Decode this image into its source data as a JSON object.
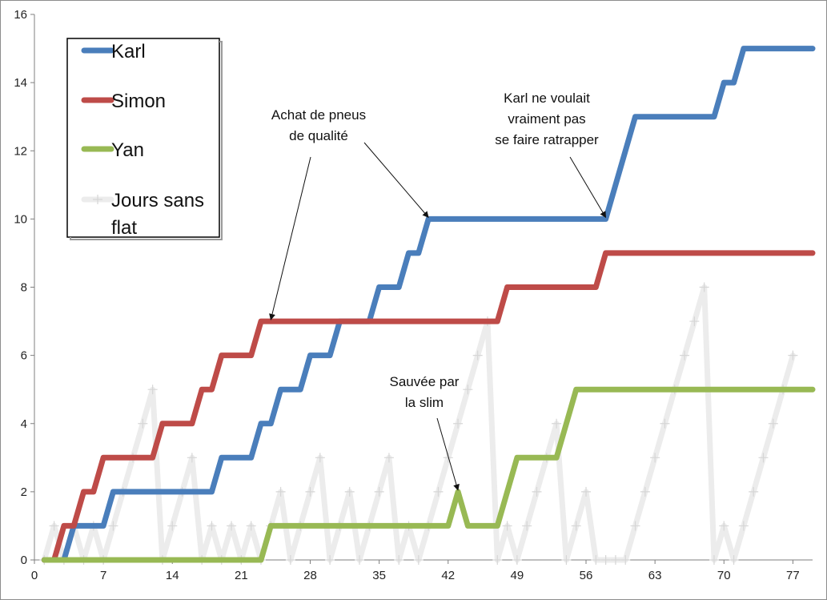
{
  "chart_data": {
    "type": "line",
    "title": "",
    "xlabel": "",
    "ylabel": "",
    "xlim": [
      0,
      79
    ],
    "ylim": [
      0,
      16
    ],
    "x_ticks": [
      0,
      7,
      14,
      21,
      28,
      35,
      42,
      49,
      56,
      63,
      70,
      77
    ],
    "y_ticks": [
      0,
      2,
      4,
      6,
      8,
      10,
      12,
      14,
      16
    ],
    "grid": false,
    "legend": {
      "placement": "top-left",
      "boxed": true
    },
    "series": [
      {
        "name": "Karl",
        "color": "#4a7ebb",
        "points": [
          [
            1,
            0
          ],
          [
            2,
            0
          ],
          [
            3,
            0
          ],
          [
            4,
            1
          ],
          [
            5,
            1
          ],
          [
            6,
            1
          ],
          [
            7,
            1
          ],
          [
            8,
            2
          ],
          [
            9,
            2
          ],
          [
            10,
            2
          ],
          [
            11,
            2
          ],
          [
            12,
            2
          ],
          [
            13,
            2
          ],
          [
            14,
            2
          ],
          [
            15,
            2
          ],
          [
            16,
            2
          ],
          [
            17,
            2
          ],
          [
            18,
            2
          ],
          [
            19,
            3
          ],
          [
            20,
            3
          ],
          [
            21,
            3
          ],
          [
            22,
            3
          ],
          [
            23,
            4
          ],
          [
            24,
            4
          ],
          [
            25,
            5
          ],
          [
            26,
            5
          ],
          [
            27,
            5
          ],
          [
            28,
            6
          ],
          [
            29,
            6
          ],
          [
            30,
            6
          ],
          [
            31,
            7
          ],
          [
            32,
            7
          ],
          [
            33,
            7
          ],
          [
            34,
            7
          ],
          [
            35,
            8
          ],
          [
            36,
            8
          ],
          [
            37,
            8
          ],
          [
            38,
            9
          ],
          [
            39,
            9
          ],
          [
            40,
            10
          ],
          [
            41,
            10
          ],
          [
            42,
            10
          ],
          [
            43,
            10
          ],
          [
            44,
            10
          ],
          [
            45,
            10
          ],
          [
            46,
            10
          ],
          [
            47,
            10
          ],
          [
            48,
            10
          ],
          [
            49,
            10
          ],
          [
            50,
            10
          ],
          [
            51,
            10
          ],
          [
            52,
            10
          ],
          [
            53,
            10
          ],
          [
            54,
            10
          ],
          [
            55,
            10
          ],
          [
            56,
            10
          ],
          [
            57,
            10
          ],
          [
            58,
            10
          ],
          [
            59,
            11
          ],
          [
            60,
            12
          ],
          [
            61,
            13
          ],
          [
            62,
            13
          ],
          [
            63,
            13
          ],
          [
            64,
            13
          ],
          [
            65,
            13
          ],
          [
            66,
            13
          ],
          [
            67,
            13
          ],
          [
            68,
            13
          ],
          [
            69,
            13
          ],
          [
            70,
            14
          ],
          [
            71,
            14
          ],
          [
            72,
            15
          ],
          [
            73,
            15
          ],
          [
            74,
            15
          ],
          [
            75,
            15
          ],
          [
            76,
            15
          ],
          [
            77,
            15
          ],
          [
            78,
            15
          ],
          [
            79,
            15
          ]
        ]
      },
      {
        "name": "Simon",
        "color": "#be4b48",
        "points": [
          [
            1,
            0
          ],
          [
            2,
            0
          ],
          [
            3,
            1
          ],
          [
            4,
            1
          ],
          [
            5,
            2
          ],
          [
            6,
            2
          ],
          [
            7,
            3
          ],
          [
            8,
            3
          ],
          [
            9,
            3
          ],
          [
            10,
            3
          ],
          [
            11,
            3
          ],
          [
            12,
            3
          ],
          [
            13,
            4
          ],
          [
            14,
            4
          ],
          [
            15,
            4
          ],
          [
            16,
            4
          ],
          [
            17,
            5
          ],
          [
            18,
            5
          ],
          [
            19,
            6
          ],
          [
            20,
            6
          ],
          [
            21,
            6
          ],
          [
            22,
            6
          ],
          [
            23,
            7
          ],
          [
            24,
            7
          ],
          [
            25,
            7
          ],
          [
            26,
            7
          ],
          [
            27,
            7
          ],
          [
            28,
            7
          ],
          [
            29,
            7
          ],
          [
            30,
            7
          ],
          [
            31,
            7
          ],
          [
            32,
            7
          ],
          [
            33,
            7
          ],
          [
            34,
            7
          ],
          [
            35,
            7
          ],
          [
            36,
            7
          ],
          [
            37,
            7
          ],
          [
            38,
            7
          ],
          [
            39,
            7
          ],
          [
            40,
            7
          ],
          [
            41,
            7
          ],
          [
            42,
            7
          ],
          [
            43,
            7
          ],
          [
            44,
            7
          ],
          [
            45,
            7
          ],
          [
            46,
            7
          ],
          [
            47,
            7
          ],
          [
            48,
            8
          ],
          [
            49,
            8
          ],
          [
            50,
            8
          ],
          [
            51,
            8
          ],
          [
            52,
            8
          ],
          [
            53,
            8
          ],
          [
            54,
            8
          ],
          [
            55,
            8
          ],
          [
            56,
            8
          ],
          [
            57,
            8
          ],
          [
            58,
            9
          ],
          [
            59,
            9
          ],
          [
            60,
            9
          ],
          [
            61,
            9
          ],
          [
            62,
            9
          ],
          [
            63,
            9
          ],
          [
            64,
            9
          ],
          [
            65,
            9
          ],
          [
            66,
            9
          ],
          [
            67,
            9
          ],
          [
            68,
            9
          ],
          [
            69,
            9
          ],
          [
            70,
            9
          ],
          [
            71,
            9
          ],
          [
            72,
            9
          ],
          [
            73,
            9
          ],
          [
            74,
            9
          ],
          [
            75,
            9
          ],
          [
            76,
            9
          ],
          [
            77,
            9
          ],
          [
            78,
            9
          ],
          [
            79,
            9
          ]
        ]
      },
      {
        "name": "Yan",
        "color": "#98b954",
        "points": [
          [
            1,
            0
          ],
          [
            2,
            0
          ],
          [
            3,
            0
          ],
          [
            4,
            0
          ],
          [
            5,
            0
          ],
          [
            6,
            0
          ],
          [
            7,
            0
          ],
          [
            8,
            0
          ],
          [
            9,
            0
          ],
          [
            10,
            0
          ],
          [
            11,
            0
          ],
          [
            12,
            0
          ],
          [
            13,
            0
          ],
          [
            14,
            0
          ],
          [
            15,
            0
          ],
          [
            16,
            0
          ],
          [
            17,
            0
          ],
          [
            18,
            0
          ],
          [
            19,
            0
          ],
          [
            20,
            0
          ],
          [
            21,
            0
          ],
          [
            22,
            0
          ],
          [
            23,
            0
          ],
          [
            24,
            1
          ],
          [
            25,
            1
          ],
          [
            26,
            1
          ],
          [
            27,
            1
          ],
          [
            28,
            1
          ],
          [
            29,
            1
          ],
          [
            30,
            1
          ],
          [
            31,
            1
          ],
          [
            32,
            1
          ],
          [
            33,
            1
          ],
          [
            34,
            1
          ],
          [
            35,
            1
          ],
          [
            36,
            1
          ],
          [
            37,
            1
          ],
          [
            38,
            1
          ],
          [
            39,
            1
          ],
          [
            40,
            1
          ],
          [
            41,
            1
          ],
          [
            42,
            1
          ],
          [
            43,
            2
          ],
          [
            44,
            1
          ],
          [
            45,
            1
          ],
          [
            46,
            1
          ],
          [
            47,
            1
          ],
          [
            48,
            2
          ],
          [
            49,
            3
          ],
          [
            50,
            3
          ],
          [
            51,
            3
          ],
          [
            52,
            3
          ],
          [
            53,
            3
          ],
          [
            54,
            4
          ],
          [
            55,
            5
          ],
          [
            56,
            5
          ],
          [
            57,
            5
          ],
          [
            58,
            5
          ],
          [
            59,
            5
          ],
          [
            60,
            5
          ],
          [
            61,
            5
          ],
          [
            62,
            5
          ],
          [
            63,
            5
          ],
          [
            64,
            5
          ],
          [
            65,
            5
          ],
          [
            66,
            5
          ],
          [
            67,
            5
          ],
          [
            68,
            5
          ],
          [
            69,
            5
          ],
          [
            70,
            5
          ],
          [
            71,
            5
          ],
          [
            72,
            5
          ],
          [
            73,
            5
          ],
          [
            74,
            5
          ],
          [
            75,
            5
          ],
          [
            76,
            5
          ],
          [
            77,
            5
          ],
          [
            78,
            5
          ],
          [
            79,
            5
          ]
        ]
      },
      {
        "name": "Jours sans flat",
        "color": "#ececec",
        "marker": "plus",
        "points": [
          [
            1,
            0
          ],
          [
            2,
            1
          ],
          [
            3,
            0
          ],
          [
            4,
            1
          ],
          [
            5,
            0
          ],
          [
            6,
            1
          ],
          [
            7,
            0
          ],
          [
            8,
            1
          ],
          [
            9,
            2
          ],
          [
            10,
            3
          ],
          [
            11,
            4
          ],
          [
            12,
            5
          ],
          [
            13,
            0
          ],
          [
            14,
            1
          ],
          [
            15,
            2
          ],
          [
            16,
            3
          ],
          [
            17,
            0
          ],
          [
            18,
            1
          ],
          [
            19,
            0
          ],
          [
            20,
            1
          ],
          [
            21,
            0
          ],
          [
            22,
            1
          ],
          [
            23,
            0
          ],
          [
            24,
            1
          ],
          [
            25,
            2
          ],
          [
            26,
            0
          ],
          [
            27,
            1
          ],
          [
            28,
            2
          ],
          [
            29,
            3
          ],
          [
            30,
            0
          ],
          [
            31,
            1
          ],
          [
            32,
            2
          ],
          [
            33,
            0
          ],
          [
            34,
            1
          ],
          [
            35,
            2
          ],
          [
            36,
            3
          ],
          [
            37,
            0
          ],
          [
            38,
            1
          ],
          [
            39,
            0
          ],
          [
            40,
            1
          ],
          [
            41,
            2
          ],
          [
            42,
            3
          ],
          [
            43,
            4
          ],
          [
            44,
            5
          ],
          [
            45,
            6
          ],
          [
            46,
            7
          ],
          [
            47,
            0
          ],
          [
            48,
            1
          ],
          [
            49,
            0
          ],
          [
            50,
            1
          ],
          [
            51,
            2
          ],
          [
            52,
            3
          ],
          [
            53,
            4
          ],
          [
            54,
            0
          ],
          [
            55,
            1
          ],
          [
            56,
            2
          ],
          [
            57,
            0
          ],
          [
            58,
            0
          ],
          [
            59,
            0
          ],
          [
            60,
            0
          ],
          [
            61,
            1
          ],
          [
            62,
            2
          ],
          [
            63,
            3
          ],
          [
            64,
            4
          ],
          [
            65,
            5
          ],
          [
            66,
            6
          ],
          [
            67,
            7
          ],
          [
            68,
            8
          ],
          [
            69,
            0
          ],
          [
            70,
            1
          ],
          [
            71,
            0
          ],
          [
            72,
            1
          ],
          [
            73,
            2
          ],
          [
            74,
            3
          ],
          [
            75,
            4
          ],
          [
            76,
            5
          ],
          [
            77,
            6
          ]
        ]
      }
    ],
    "annotations": [
      {
        "lines": [
          "Achat de pneus",
          "de qualité"
        ],
        "target": [
          24,
          7
        ]
      },
      {
        "lines": [
          "Karl ne voulait",
          "vraiment pas",
          "se faire ratrapper"
        ],
        "target": [
          58,
          10
        ]
      },
      {
        "lines": [
          "Sauvée par",
          "la slim"
        ],
        "target": [
          43,
          2
        ]
      }
    ]
  }
}
